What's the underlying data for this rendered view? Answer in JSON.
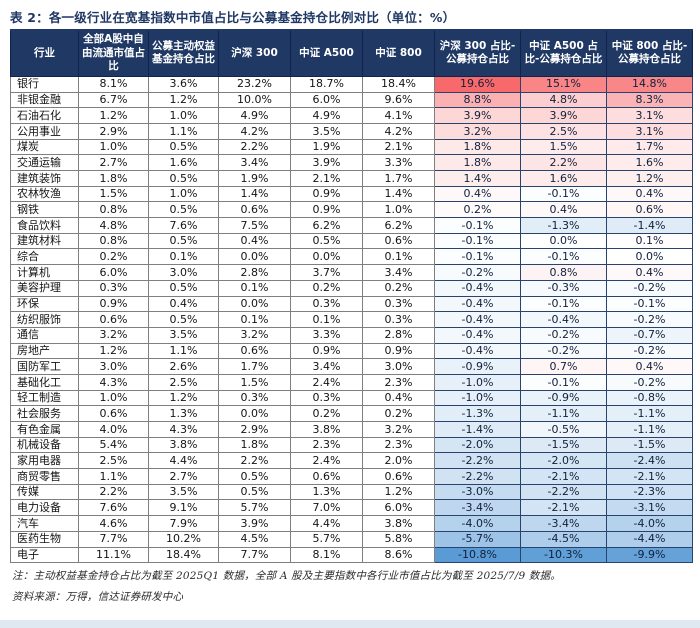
{
  "title": "表 2：各一级行业在宽基指数中市值占比与公募基金持仓比例对比（单位：%）",
  "note": "注：主动权益基金持仓占比为截至 2025Q1 数据，全部 A 股及主要指数中各行业市值占比为截至 2025/7/9 数据。",
  "source": "资料来源：万得，信达证券研发中心",
  "colors": {
    "header_bg": "#1f3864",
    "title_text": "#1f3864",
    "heat_positive_max": "#f8696b",
    "heat_negative_min": "#5b9bd5",
    "bottom_band": "#dfe7f1"
  },
  "chart_data": {
    "type": "table",
    "title": "表 2：各一级行业在宽基指数中市值占比与公募基金持仓比例对比（单位：%）",
    "columns": [
      "行业",
      "全部A股中自由流通市值占比",
      "公募主动权益基金持仓占比",
      "沪深 300",
      "中证 A500",
      "中证 800",
      "沪深 300 占比-公募持仓占比",
      "中证 A500 占比-公募持仓占比",
      "中证 800 占比-公募持仓占比"
    ],
    "unit": "%",
    "heatmap_columns": [
      6,
      7,
      8
    ],
    "rows": [
      {
        "industry": "银行",
        "values": [
          8.1,
          3.6,
          23.2,
          18.7,
          18.4,
          19.6,
          15.1,
          14.8
        ]
      },
      {
        "industry": "非银金融",
        "values": [
          6.7,
          1.2,
          10.0,
          6.0,
          9.6,
          8.8,
          4.8,
          8.3
        ]
      },
      {
        "industry": "石油石化",
        "values": [
          1.2,
          1.0,
          4.9,
          4.9,
          4.1,
          3.9,
          3.9,
          3.1
        ]
      },
      {
        "industry": "公用事业",
        "values": [
          2.9,
          1.1,
          4.2,
          3.5,
          4.2,
          3.2,
          2.5,
          3.1
        ]
      },
      {
        "industry": "煤炭",
        "values": [
          1.0,
          0.5,
          2.2,
          1.9,
          2.1,
          1.8,
          1.5,
          1.7
        ]
      },
      {
        "industry": "交通运输",
        "values": [
          2.7,
          1.6,
          3.4,
          3.9,
          3.3,
          1.8,
          2.2,
          1.6
        ]
      },
      {
        "industry": "建筑装饰",
        "values": [
          1.8,
          0.5,
          1.9,
          2.1,
          1.7,
          1.4,
          1.6,
          1.2
        ]
      },
      {
        "industry": "农林牧渔",
        "values": [
          1.5,
          1.0,
          1.4,
          0.9,
          1.4,
          0.4,
          -0.1,
          0.4
        ]
      },
      {
        "industry": "钢铁",
        "values": [
          0.8,
          0.5,
          0.6,
          0.9,
          1.0,
          0.2,
          0.4,
          0.6
        ]
      },
      {
        "industry": "食品饮料",
        "values": [
          4.8,
          7.6,
          7.5,
          6.2,
          6.2,
          -0.1,
          -1.3,
          -1.4
        ]
      },
      {
        "industry": "建筑材料",
        "values": [
          0.8,
          0.5,
          0.4,
          0.5,
          0.6,
          -0.1,
          0.0,
          0.1
        ]
      },
      {
        "industry": "综合",
        "values": [
          0.2,
          0.1,
          0.0,
          0.0,
          0.1,
          -0.1,
          -0.1,
          0.0
        ]
      },
      {
        "industry": "计算机",
        "values": [
          6.0,
          3.0,
          2.8,
          3.7,
          3.4,
          -0.2,
          0.8,
          0.4
        ]
      },
      {
        "industry": "美容护理",
        "values": [
          0.3,
          0.5,
          0.1,
          0.2,
          0.2,
          -0.4,
          -0.3,
          -0.2
        ]
      },
      {
        "industry": "环保",
        "values": [
          0.9,
          0.4,
          0.0,
          0.3,
          0.3,
          -0.4,
          -0.1,
          -0.1
        ]
      },
      {
        "industry": "纺织服饰",
        "values": [
          0.6,
          0.5,
          0.1,
          0.1,
          0.3,
          -0.4,
          -0.4,
          -0.2
        ]
      },
      {
        "industry": "通信",
        "values": [
          3.2,
          3.5,
          3.2,
          3.3,
          2.8,
          -0.4,
          -0.2,
          -0.7
        ]
      },
      {
        "industry": "房地产",
        "values": [
          1.2,
          1.1,
          0.6,
          0.9,
          0.9,
          -0.4,
          -0.2,
          -0.2
        ]
      },
      {
        "industry": "国防军工",
        "values": [
          3.0,
          2.6,
          1.7,
          3.4,
          3.0,
          -0.9,
          0.7,
          0.4
        ]
      },
      {
        "industry": "基础化工",
        "values": [
          4.3,
          2.5,
          1.5,
          2.4,
          2.3,
          -1.0,
          -0.1,
          -0.2
        ]
      },
      {
        "industry": "轻工制造",
        "values": [
          1.0,
          1.2,
          0.3,
          0.3,
          0.4,
          -1.0,
          -0.9,
          -0.8
        ]
      },
      {
        "industry": "社会服务",
        "values": [
          0.6,
          1.3,
          0.0,
          0.2,
          0.2,
          -1.3,
          -1.1,
          -1.1
        ]
      },
      {
        "industry": "有色金属",
        "values": [
          4.0,
          4.3,
          2.9,
          3.8,
          3.2,
          -1.4,
          -0.5,
          -1.1
        ]
      },
      {
        "industry": "机械设备",
        "values": [
          5.4,
          3.8,
          1.8,
          2.3,
          2.3,
          -2.0,
          -1.5,
          -1.5
        ]
      },
      {
        "industry": "家用电器",
        "values": [
          2.5,
          4.4,
          2.2,
          2.4,
          2.0,
          -2.2,
          -2.0,
          -2.4
        ]
      },
      {
        "industry": "商贸零售",
        "values": [
          1.1,
          2.7,
          0.5,
          0.6,
          0.6,
          -2.2,
          -2.1,
          -2.1
        ]
      },
      {
        "industry": "传媒",
        "values": [
          2.2,
          3.5,
          0.5,
          1.3,
          1.2,
          -3.0,
          -2.2,
          -2.3
        ]
      },
      {
        "industry": "电力设备",
        "values": [
          7.6,
          9.1,
          5.7,
          7.0,
          6.0,
          -3.4,
          -2.1,
          -3.1
        ]
      },
      {
        "industry": "汽车",
        "values": [
          4.6,
          7.9,
          3.9,
          4.4,
          3.8,
          -4.0,
          -3.4,
          -4.0
        ]
      },
      {
        "industry": "医药生物",
        "values": [
          7.7,
          10.2,
          4.5,
          5.7,
          5.8,
          -5.7,
          -4.5,
          -4.4
        ]
      },
      {
        "industry": "电子",
        "values": [
          11.1,
          18.4,
          7.7,
          8.1,
          8.6,
          -10.8,
          -10.3,
          -9.9
        ]
      }
    ]
  }
}
